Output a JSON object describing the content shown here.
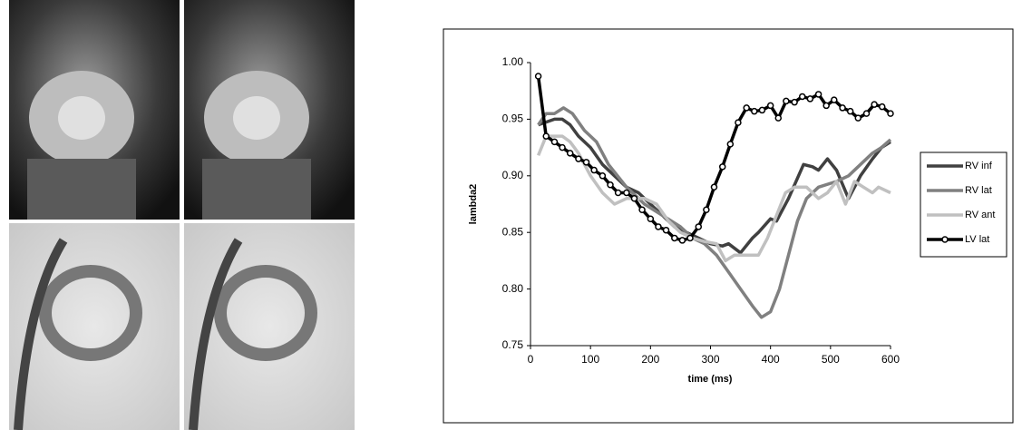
{
  "chart_data": {
    "type": "line",
    "x_label": "time (ms)",
    "y_label": "lambda2",
    "xlim": [
      0,
      600
    ],
    "xticks": [
      0,
      100,
      200,
      300,
      400,
      500,
      600
    ],
    "ylim": [
      0.75,
      1.0
    ],
    "yticks": [
      {
        "value": 0.75,
        "label": "0.75"
      },
      {
        "value": 0.8,
        "label": "0.80"
      },
      {
        "value": 0.85,
        "label": "0.85"
      },
      {
        "value": 0.9,
        "label": "0.90"
      },
      {
        "value": 0.95,
        "label": "0.95"
      },
      {
        "value": 1.0,
        "label": "1.00"
      }
    ],
    "legend": "right",
    "series": [
      {
        "name": "RV inf",
        "color": "#404040",
        "marker": false,
        "x": [
          13,
          40,
          53,
          66,
          80,
          100,
          120,
          140,
          160,
          180,
          200,
          220,
          240,
          260,
          280,
          300,
          320,
          330,
          350,
          370,
          380,
          400,
          410,
          430,
          455,
          470,
          480,
          495,
          510,
          530,
          550,
          570,
          585,
          600
        ],
        "values": [
          0.945,
          0.95,
          0.95,
          0.945,
          0.935,
          0.925,
          0.91,
          0.9,
          0.89,
          0.885,
          0.875,
          0.865,
          0.855,
          0.85,
          0.845,
          0.84,
          0.838,
          0.84,
          0.832,
          0.845,
          0.85,
          0.862,
          0.86,
          0.88,
          0.91,
          0.908,
          0.905,
          0.915,
          0.905,
          0.88,
          0.9,
          0.915,
          0.925,
          0.93
        ]
      },
      {
        "name": "RV lat",
        "color": "#808080",
        "marker": false,
        "x": [
          13,
          26,
          40,
          55,
          70,
          90,
          110,
          130,
          160,
          190,
          220,
          250,
          270,
          290,
          310,
          330,
          350,
          370,
          385,
          400,
          415,
          430,
          445,
          460,
          480,
          510,
          530,
          550,
          570,
          585,
          600
        ],
        "values": [
          0.945,
          0.955,
          0.955,
          0.96,
          0.955,
          0.94,
          0.93,
          0.91,
          0.89,
          0.875,
          0.865,
          0.855,
          0.845,
          0.84,
          0.83,
          0.815,
          0.8,
          0.785,
          0.775,
          0.78,
          0.8,
          0.83,
          0.86,
          0.88,
          0.89,
          0.895,
          0.9,
          0.91,
          0.92,
          0.925,
          0.932
        ]
      },
      {
        "name": "RV ant",
        "color": "#c0c0c0",
        "marker": false,
        "x": [
          13,
          26,
          53,
          66,
          80,
          100,
          120,
          140,
          160,
          190,
          210,
          230,
          250,
          270,
          290,
          310,
          325,
          340,
          360,
          380,
          395,
          410,
          425,
          440,
          460,
          480,
          495,
          510,
          525,
          540,
          555,
          570,
          580,
          600
        ],
        "values": [
          0.918,
          0.935,
          0.935,
          0.93,
          0.92,
          0.9,
          0.885,
          0.875,
          0.88,
          0.88,
          0.875,
          0.86,
          0.85,
          0.845,
          0.842,
          0.84,
          0.825,
          0.83,
          0.83,
          0.83,
          0.845,
          0.865,
          0.885,
          0.89,
          0.89,
          0.88,
          0.885,
          0.895,
          0.875,
          0.895,
          0.89,
          0.885,
          0.89,
          0.885
        ]
      },
      {
        "name": "LV lat",
        "color": "#000000",
        "marker": true,
        "x": [
          13,
          26,
          40,
          53,
          66,
          80,
          93,
          106,
          120,
          133,
          146,
          160,
          173,
          186,
          200,
          213,
          226,
          240,
          253,
          266,
          280,
          293,
          306,
          320,
          333,
          346,
          360,
          373,
          386,
          400,
          413,
          426,
          440,
          453,
          466,
          480,
          493,
          506,
          520,
          533,
          546,
          560,
          573,
          586,
          600
        ],
        "values": [
          0.988,
          0.935,
          0.93,
          0.925,
          0.92,
          0.915,
          0.912,
          0.905,
          0.9,
          0.892,
          0.885,
          0.885,
          0.88,
          0.87,
          0.862,
          0.855,
          0.852,
          0.845,
          0.843,
          0.845,
          0.855,
          0.87,
          0.89,
          0.908,
          0.928,
          0.947,
          0.96,
          0.957,
          0.958,
          0.962,
          0.951,
          0.966,
          0.965,
          0.97,
          0.968,
          0.972,
          0.962,
          0.967,
          0.96,
          0.957,
          0.951,
          0.955,
          0.963,
          0.961,
          0.955
        ]
      }
    ]
  }
}
